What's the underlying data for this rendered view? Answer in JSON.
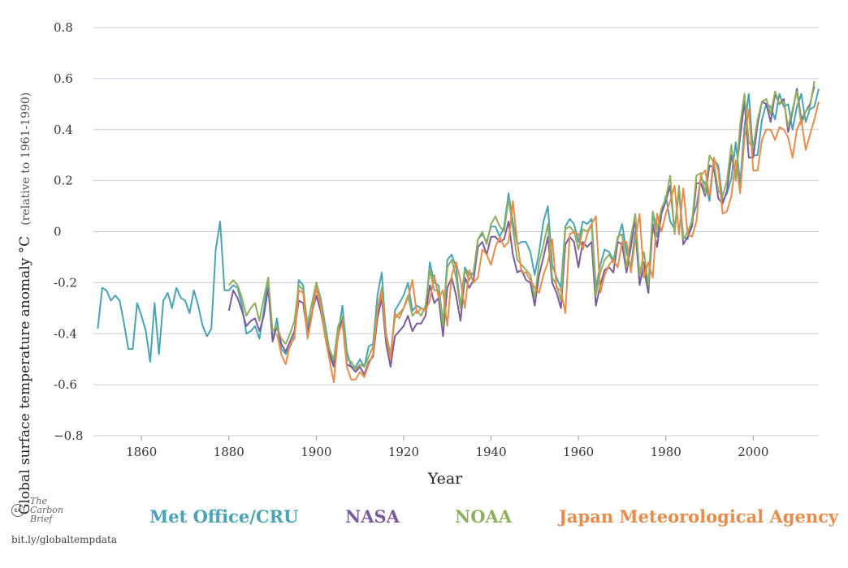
{
  "colors": {
    "met_office": "#4aa3b5",
    "nasa": "#7a5c9a",
    "noaa": "#8fae5f",
    "jma": "#e68c4c",
    "grid": "#c8ccd6"
  },
  "chart_data": {
    "type": "line",
    "xlabel": "Year",
    "ylabel": "Global surface temperature anomaly °C",
    "ylabel_note": "(relative to 1961-1990)",
    "xlim": [
      1849,
      2015
    ],
    "ylim": [
      -0.8,
      0.8
    ],
    "xticks": [
      1860,
      1880,
      1900,
      1920,
      1940,
      1960,
      1980,
      2000
    ],
    "yticks": [
      -0.8,
      -0.6,
      -0.4,
      -0.2,
      0,
      0.2,
      0.4,
      0.6,
      0.8
    ],
    "ytick_labels": [
      "−0.8",
      "-0.6",
      "-0.4",
      "-0.2",
      "0",
      "0.2",
      "0.4",
      "0.6",
      "0.8"
    ],
    "grid": true,
    "legend": "bottom",
    "series": [
      {
        "name": "Met Office/CRU",
        "color_key": "met_office",
        "x_start": 1850,
        "values": [
          -0.38,
          -0.22,
          -0.23,
          -0.27,
          -0.25,
          -0.27,
          -0.36,
          -0.46,
          -0.46,
          -0.28,
          -0.33,
          -0.39,
          -0.51,
          -0.28,
          -0.48,
          -0.27,
          -0.24,
          -0.3,
          -0.22,
          -0.26,
          -0.27,
          -0.32,
          -0.23,
          -0.29,
          -0.37,
          -0.41,
          -0.38,
          -0.07,
          0.04,
          -0.23,
          -0.23,
          -0.21,
          -0.22,
          -0.29,
          -0.4,
          -0.39,
          -0.37,
          -0.42,
          -0.31,
          -0.18,
          -0.43,
          -0.34,
          -0.46,
          -0.48,
          -0.45,
          -0.41,
          -0.19,
          -0.21,
          -0.38,
          -0.32,
          -0.2,
          -0.26,
          -0.36,
          -0.46,
          -0.52,
          -0.4,
          -0.29,
          -0.47,
          -0.53,
          -0.53,
          -0.5,
          -0.53,
          -0.45,
          -0.44,
          -0.25,
          -0.16,
          -0.41,
          -0.5,
          -0.31,
          -0.28,
          -0.25,
          -0.2,
          -0.31,
          -0.29,
          -0.3,
          -0.31,
          -0.12,
          -0.2,
          -0.21,
          -0.36,
          -0.11,
          -0.09,
          -0.14,
          -0.3,
          -0.14,
          -0.17,
          -0.16,
          -0.03,
          -0.01,
          -0.04,
          0.02,
          0.02,
          -0.02,
          0.02,
          0.15,
          0.04,
          -0.05,
          -0.04,
          -0.04,
          -0.08,
          -0.17,
          -0.08,
          0.04,
          0.1,
          -0.13,
          -0.18,
          -0.22,
          0.02,
          0.05,
          0.03,
          -0.04,
          0.04,
          0.03,
          0.05,
          -0.22,
          -0.13,
          -0.07,
          -0.08,
          -0.11,
          -0.03,
          0.03,
          -0.08,
          -0.14,
          0.0,
          -0.2,
          -0.15,
          -0.24,
          0.07,
          -0.02,
          0.07,
          0.14,
          0.04,
          0.01,
          0.16,
          -0.02,
          -0.03,
          0.05,
          0.1,
          0.21,
          0.19,
          0.12,
          0.28,
          0.26,
          0.12,
          0.15,
          0.21,
          0.35,
          0.19,
          0.41,
          0.54,
          0.3,
          0.3,
          0.44,
          0.5,
          0.49,
          0.44,
          0.54,
          0.49,
          0.5,
          0.4,
          0.49,
          0.54,
          0.43,
          0.48,
          0.49,
          0.56
        ]
      },
      {
        "name": "NASA",
        "color_key": "nasa",
        "x_start": 1880,
        "values": [
          -0.31,
          -0.23,
          -0.26,
          -0.31,
          -0.37,
          -0.35,
          -0.34,
          -0.39,
          -0.33,
          -0.22,
          -0.43,
          -0.37,
          -0.44,
          -0.47,
          -0.43,
          -0.39,
          -0.27,
          -0.28,
          -0.4,
          -0.32,
          -0.25,
          -0.31,
          -0.4,
          -0.48,
          -0.53,
          -0.41,
          -0.34,
          -0.52,
          -0.53,
          -0.55,
          -0.53,
          -0.56,
          -0.51,
          -0.49,
          -0.34,
          -0.26,
          -0.44,
          -0.53,
          -0.41,
          -0.39,
          -0.37,
          -0.33,
          -0.39,
          -0.36,
          -0.36,
          -0.33,
          -0.21,
          -0.28,
          -0.26,
          -0.41,
          -0.22,
          -0.18,
          -0.25,
          -0.35,
          -0.18,
          -0.22,
          -0.19,
          -0.06,
          -0.04,
          -0.09,
          -0.02,
          -0.02,
          -0.04,
          -0.03,
          0.04,
          -0.09,
          -0.16,
          -0.15,
          -0.19,
          -0.2,
          -0.29,
          -0.17,
          -0.1,
          -0.02,
          -0.2,
          -0.24,
          -0.3,
          -0.05,
          -0.02,
          -0.04,
          -0.14,
          -0.04,
          -0.06,
          -0.04,
          -0.29,
          -0.21,
          -0.15,
          -0.14,
          -0.16,
          -0.04,
          -0.05,
          -0.16,
          -0.06,
          0.05,
          -0.21,
          -0.12,
          -0.24,
          0.03,
          -0.06,
          0.07,
          0.12,
          0.18,
          0.0,
          0.17,
          -0.05,
          -0.02,
          0.02,
          0.19,
          0.19,
          0.14,
          0.26,
          0.25,
          0.13,
          0.11,
          0.16,
          0.3,
          0.22,
          0.37,
          0.51,
          0.29,
          0.29,
          0.42,
          0.51,
          0.5,
          0.43,
          0.54,
          0.5,
          0.52,
          0.39,
          0.47,
          0.56,
          0.44,
          0.47,
          0.5,
          0.57
        ]
      },
      {
        "name": "NOAA",
        "color_key": "noaa",
        "x_start": 1880,
        "values": [
          -0.21,
          -0.19,
          -0.21,
          -0.26,
          -0.33,
          -0.3,
          -0.28,
          -0.35,
          -0.26,
          -0.18,
          -0.39,
          -0.37,
          -0.42,
          -0.44,
          -0.4,
          -0.35,
          -0.21,
          -0.23,
          -0.36,
          -0.28,
          -0.2,
          -0.27,
          -0.38,
          -0.46,
          -0.5,
          -0.37,
          -0.33,
          -0.5,
          -0.51,
          -0.54,
          -0.52,
          -0.53,
          -0.49,
          -0.45,
          -0.3,
          -0.22,
          -0.4,
          -0.48,
          -0.34,
          -0.32,
          -0.3,
          -0.25,
          -0.33,
          -0.31,
          -0.33,
          -0.29,
          -0.15,
          -0.23,
          -0.23,
          -0.37,
          -0.14,
          -0.11,
          -0.18,
          -0.3,
          -0.15,
          -0.19,
          -0.16,
          -0.03,
          0.0,
          -0.05,
          0.03,
          0.06,
          0.02,
          0.0,
          0.13,
          0.01,
          -0.11,
          -0.13,
          -0.15,
          -0.17,
          -0.26,
          -0.12,
          -0.05,
          0.03,
          -0.18,
          -0.21,
          -0.27,
          0.01,
          0.02,
          0.0,
          -0.07,
          0.01,
          0.0,
          0.03,
          -0.25,
          -0.16,
          -0.11,
          -0.09,
          -0.12,
          -0.02,
          -0.01,
          -0.14,
          -0.02,
          0.07,
          -0.17,
          -0.08,
          -0.21,
          0.08,
          0.01,
          0.09,
          0.13,
          0.22,
          -0.01,
          0.18,
          -0.03,
          0.0,
          0.04,
          0.22,
          0.23,
          0.15,
          0.3,
          0.27,
          0.16,
          0.14,
          0.2,
          0.34,
          0.2,
          0.42,
          0.54,
          0.35,
          0.33,
          0.44,
          0.51,
          0.52,
          0.46,
          0.55,
          0.5,
          0.51,
          0.41,
          0.48,
          0.55,
          0.42,
          0.47,
          0.49,
          0.59
        ]
      },
      {
        "name": "Japan Meteorological Agency",
        "color_key": "jma",
        "x_start": 1891,
        "values": [
          -0.4,
          -0.48,
          -0.52,
          -0.44,
          -0.42,
          -0.23,
          -0.24,
          -0.42,
          -0.33,
          -0.22,
          -0.29,
          -0.41,
          -0.5,
          -0.59,
          -0.4,
          -0.36,
          -0.53,
          -0.58,
          -0.58,
          -0.55,
          -0.57,
          -0.52,
          -0.48,
          -0.31,
          -0.24,
          -0.41,
          -0.5,
          -0.32,
          -0.34,
          -0.3,
          -0.26,
          -0.19,
          -0.32,
          -0.3,
          -0.31,
          -0.27,
          -0.17,
          -0.26,
          -0.23,
          -0.37,
          -0.17,
          -0.12,
          -0.19,
          -0.3,
          -0.15,
          -0.2,
          -0.18,
          -0.07,
          -0.09,
          -0.13,
          -0.06,
          -0.02,
          -0.06,
          -0.04,
          0.12,
          -0.04,
          -0.16,
          -0.16,
          -0.19,
          -0.22,
          -0.24,
          -0.17,
          -0.12,
          -0.03,
          -0.22,
          -0.23,
          -0.32,
          -0.01,
          0.0,
          -0.01,
          -0.07,
          -0.01,
          0.03,
          0.06,
          -0.24,
          -0.17,
          -0.13,
          -0.11,
          -0.14,
          -0.04,
          -0.04,
          -0.16,
          -0.03,
          0.07,
          -0.18,
          -0.12,
          -0.18,
          0.07,
          0.0,
          0.07,
          0.12,
          0.18,
          -0.01,
          0.17,
          -0.01,
          -0.02,
          0.04,
          0.22,
          0.24,
          0.14,
          0.29,
          0.24,
          0.07,
          0.08,
          0.14,
          0.28,
          0.15,
          0.36,
          0.48,
          0.24,
          0.24,
          0.36,
          0.4,
          0.4,
          0.36,
          0.41,
          0.4,
          0.37,
          0.29,
          0.4,
          0.44,
          0.32,
          0.38,
          0.44,
          0.51
        ]
      }
    ]
  },
  "legend": {
    "met_office": "Met Office/CRU",
    "nasa": "NASA",
    "noaa": "NOAA",
    "jma": "Japan Meteorological Agency"
  },
  "logo": {
    "line1": "The",
    "line2": "Carbon",
    "line3": "Brief",
    "cc": "cc"
  },
  "credit": "bit.ly/globaltempdata"
}
